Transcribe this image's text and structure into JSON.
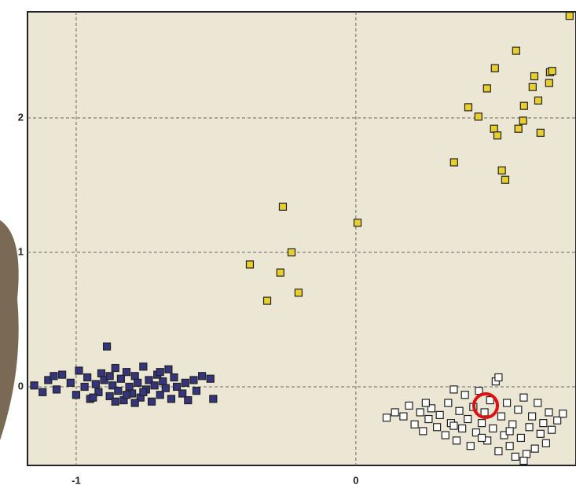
{
  "chart_data": {
    "type": "scatter",
    "xlim": [
      -1.174,
      0.787
    ],
    "ylim": [
      -0.585,
      2.79
    ],
    "xticks": [
      -1,
      0
    ],
    "yticks": [
      0,
      1,
      2
    ],
    "grid": true,
    "series": [
      {
        "color": "#e8cf2a",
        "x": [
          0.764,
          0.573,
          0.497,
          0.694,
          0.702,
          0.638,
          0.691,
          0.632,
          0.469,
          0.652,
          0.601,
          0.402,
          0.438,
          0.598,
          0.494,
          0.581,
          0.66,
          0.506,
          0.351,
          0.522,
          0.534,
          -0.261,
          0.006,
          -0.23,
          -0.379,
          -0.27,
          -0.205,
          -0.317
        ],
        "values": [
          2.76,
          2.5,
          2.37,
          2.34,
          2.35,
          2.31,
          2.26,
          2.23,
          2.22,
          2.13,
          2.09,
          2.08,
          2.01,
          1.98,
          1.92,
          1.92,
          1.89,
          1.87,
          1.67,
          1.61,
          1.54,
          1.34,
          1.22,
          1.0,
          0.91,
          0.85,
          0.7,
          0.64
        ]
      },
      {
        "color": "#34357e",
        "x": [
          -1.15,
          -1.12,
          -1.1,
          -1.07,
          -1.05,
          -1.02,
          -1.0,
          -0.99,
          -0.97,
          -0.96,
          -0.95,
          -0.93,
          -0.92,
          -0.91,
          -0.9,
          -0.89,
          -0.88,
          -0.87,
          -0.86,
          -0.85,
          -0.84,
          -0.83,
          -0.82,
          -0.81,
          -0.8,
          -0.79,
          -0.78,
          -0.77,
          -0.76,
          -0.75,
          -0.74,
          -0.73,
          -0.72,
          -0.71,
          -0.7,
          -0.69,
          -0.68,
          -0.67,
          -0.66,
          -0.65,
          -0.64,
          -0.62,
          -0.61,
          -0.6,
          -0.58,
          -0.57,
          -0.55,
          -0.52,
          -0.51,
          -0.94,
          -0.88,
          -0.82,
          -0.76,
          -0.7,
          -0.86,
          -0.79,
          -1.08
        ],
        "values": [
          0.01,
          -0.04,
          0.05,
          -0.02,
          0.09,
          0.03,
          -0.06,
          0.12,
          0.0,
          0.07,
          -0.09,
          0.02,
          -0.04,
          0.1,
          0.05,
          0.3,
          -0.07,
          0.01,
          0.14,
          -0.03,
          0.06,
          -0.1,
          0.11,
          0.0,
          -0.05,
          0.08,
          0.03,
          -0.08,
          0.15,
          -0.02,
          0.05,
          -0.11,
          0.01,
          0.09,
          -0.06,
          0.04,
          -0.01,
          0.13,
          -0.09,
          0.07,
          0.0,
          -0.05,
          0.03,
          -0.1,
          0.05,
          -0.03,
          0.08,
          0.06,
          -0.09,
          -0.08,
          0.08,
          -0.06,
          -0.04,
          0.11,
          -0.11,
          -0.12,
          0.08
        ]
      },
      {
        "color": "#ffffff",
        "x": [
          0.11,
          0.14,
          0.17,
          0.19,
          0.21,
          0.23,
          0.24,
          0.26,
          0.27,
          0.29,
          0.3,
          0.32,
          0.33,
          0.34,
          0.35,
          0.36,
          0.37,
          0.38,
          0.39,
          0.4,
          0.41,
          0.42,
          0.43,
          0.44,
          0.45,
          0.46,
          0.47,
          0.48,
          0.49,
          0.5,
          0.51,
          0.51,
          0.52,
          0.53,
          0.54,
          0.55,
          0.56,
          0.57,
          0.58,
          0.59,
          0.6,
          0.61,
          0.62,
          0.63,
          0.64,
          0.65,
          0.66,
          0.67,
          0.68,
          0.69,
          0.7,
          0.72,
          0.74,
          0.6,
          0.55,
          0.45,
          0.35,
          0.25
        ],
        "values": [
          -0.23,
          -0.19,
          -0.22,
          -0.14,
          -0.28,
          -0.19,
          -0.33,
          -0.24,
          -0.16,
          -0.3,
          -0.21,
          -0.36,
          -0.12,
          -0.27,
          -0.02,
          -0.4,
          -0.18,
          -0.31,
          -0.06,
          -0.24,
          -0.44,
          -0.15,
          -0.34,
          -0.03,
          -0.27,
          -0.19,
          -0.4,
          -0.1,
          -0.31,
          0.04,
          -0.48,
          0.07,
          -0.22,
          -0.36,
          -0.12,
          -0.44,
          -0.28,
          -0.52,
          -0.17,
          -0.38,
          -0.08,
          -0.5,
          -0.3,
          -0.22,
          -0.46,
          -0.12,
          -0.35,
          -0.27,
          -0.42,
          -0.19,
          -0.32,
          -0.25,
          -0.2,
          -0.55,
          -0.33,
          -0.38,
          -0.29,
          -0.12
        ]
      }
    ]
  }
}
